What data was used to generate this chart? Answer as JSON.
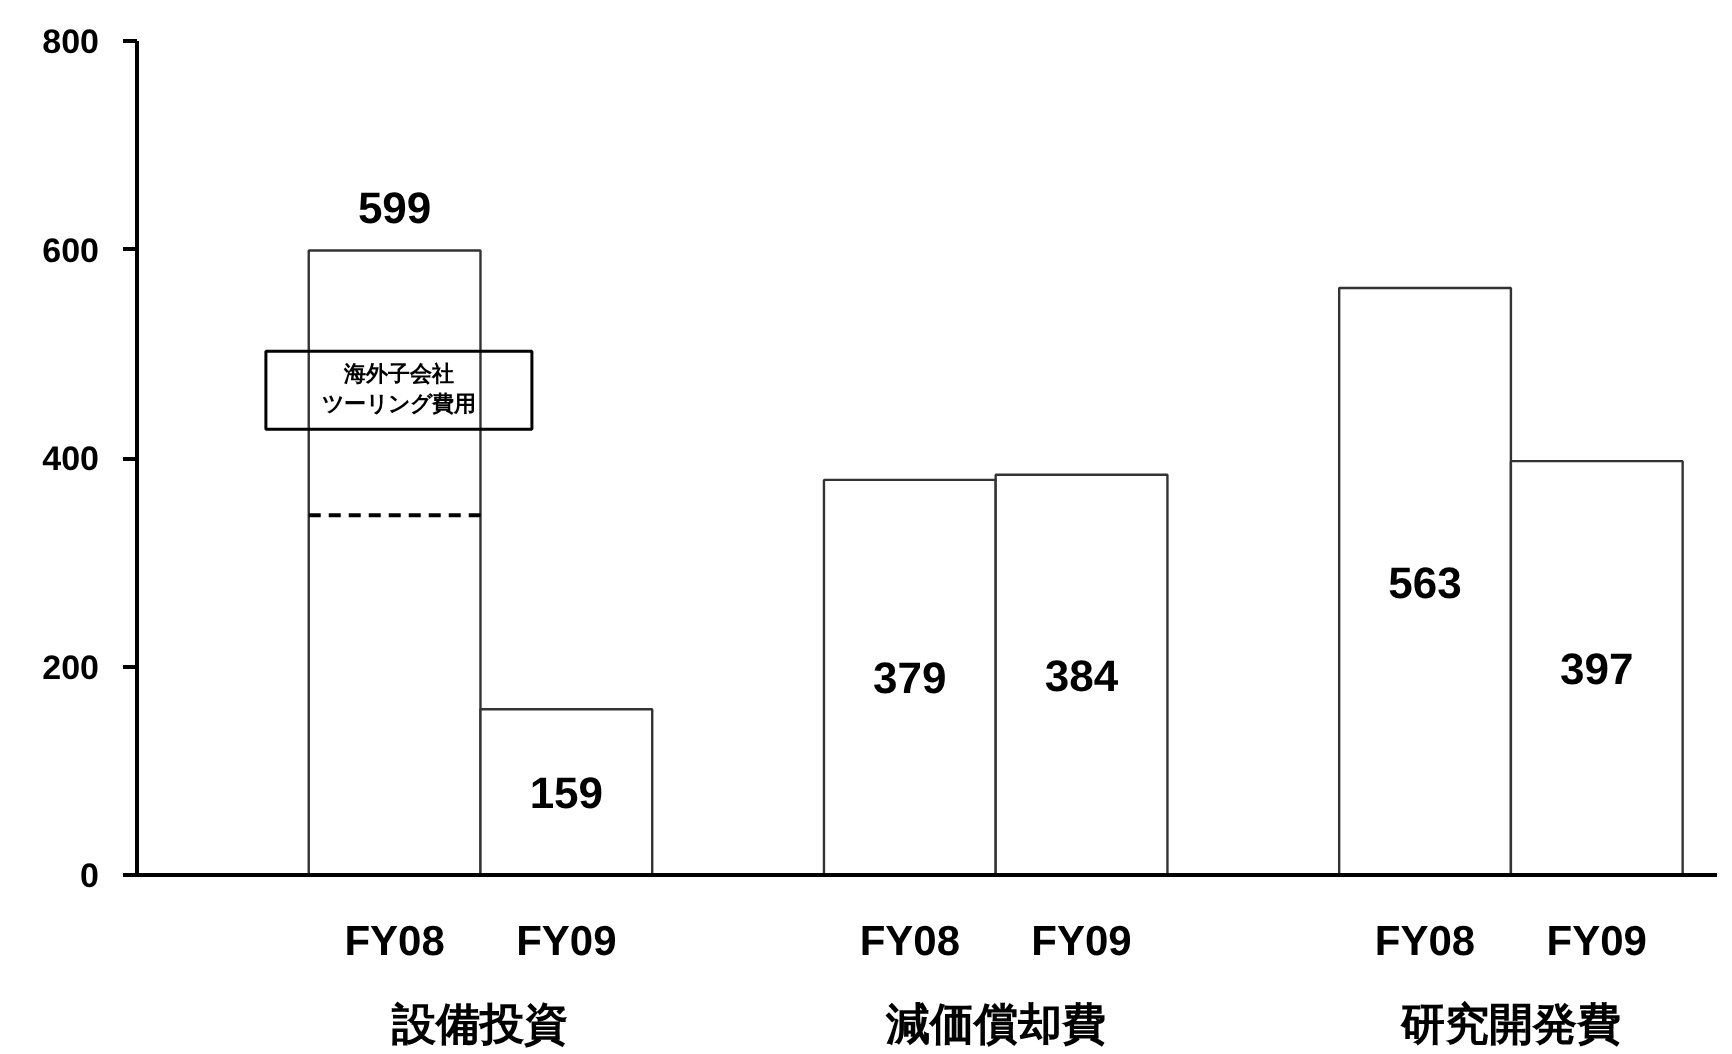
{
  "chart_data": {
    "type": "bar",
    "categories": [
      "設備投資",
      "減価償却費",
      "研究開発費"
    ],
    "series": [
      {
        "name": "FY08",
        "color": "#ffffff",
        "values": [
          599,
          379,
          563
        ]
      },
      {
        "name": "FY09",
        "color": "#ffffff",
        "values": [
          159,
          384,
          397
        ]
      }
    ],
    "ylim": [
      0,
      800
    ],
    "yticks": [
      0,
      200,
      400,
      600,
      800
    ],
    "data_labels": true,
    "ref_lines": [
      {
        "axis": "y",
        "value": 345,
        "color": "#000000",
        "line_style": "dashed"
      }
    ],
    "annotations": [
      {
        "text": "海外子会社ツーリング費用",
        "x": "設備投資",
        "y": 465
      }
    ]
  }
}
